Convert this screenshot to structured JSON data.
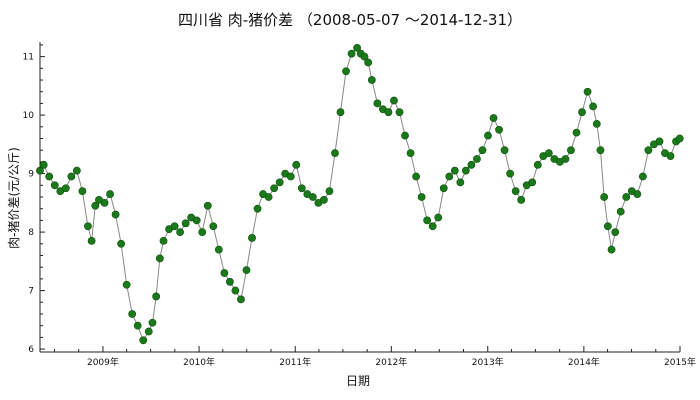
{
  "chart_data": {
    "type": "line",
    "title": "四川省 肉-猪价差 （2008-05-07 ～2014-12-31）",
    "xlabel": "日期",
    "ylabel": "肉-猪价差(元/公斤)",
    "x_tick_labels": [
      "2009年",
      "2010年",
      "2011年",
      "2012年",
      "2013年",
      "2014年",
      "2015年"
    ],
    "y_tick_labels": [
      "6",
      "7",
      "8",
      "9",
      "10",
      "11"
    ],
    "xlim": [
      "2008-05-07",
      "2015-01-01"
    ],
    "ylim": [
      5.95,
      11.25
    ],
    "grid": false,
    "series": [
      {
        "color": "#1a7a1a",
        "line_color": "#888888",
        "marker": "circle",
        "x": [
          "2008-05-07",
          "2008-05-21",
          "2008-06-11",
          "2008-07-02",
          "2008-07-23",
          "2008-08-13",
          "2008-09-03",
          "2008-09-24",
          "2008-10-15",
          "2008-11-05",
          "2008-11-19",
          "2008-12-03",
          "2008-12-17",
          "2009-01-07",
          "2009-01-28",
          "2009-02-18",
          "2009-03-11",
          "2009-04-01",
          "2009-04-22",
          "2009-05-13",
          "2009-06-03",
          "2009-06-24",
          "2009-07-08",
          "2009-07-22",
          "2009-08-05",
          "2009-08-19",
          "2009-09-09",
          "2009-09-30",
          "2009-10-21",
          "2009-11-11",
          "2009-12-02",
          "2009-12-23",
          "2010-01-13",
          "2010-02-03",
          "2010-02-24",
          "2010-03-17",
          "2010-04-07",
          "2010-04-28",
          "2010-05-19",
          "2010-06-09",
          "2010-06-30",
          "2010-07-21",
          "2010-08-11",
          "2010-09-01",
          "2010-09-22",
          "2010-10-13",
          "2010-11-03",
          "2010-11-24",
          "2010-12-15",
          "2011-01-05",
          "2011-01-26",
          "2011-02-16",
          "2011-03-09",
          "2011-03-30",
          "2011-04-20",
          "2011-05-11",
          "2011-06-01",
          "2011-06-22",
          "2011-07-13",
          "2011-08-03",
          "2011-08-24",
          "2011-09-07",
          "2011-09-21",
          "2011-10-05",
          "2011-10-19",
          "2011-11-09",
          "2011-11-30",
          "2011-12-21",
          "2012-01-11",
          "2012-02-01",
          "2012-02-22",
          "2012-03-14",
          "2012-04-04",
          "2012-04-25",
          "2012-05-16",
          "2012-06-06",
          "2012-06-27",
          "2012-07-18",
          "2012-08-08",
          "2012-08-29",
          "2012-09-19",
          "2012-10-10",
          "2012-10-31",
          "2012-11-21",
          "2012-12-12",
          "2013-01-02",
          "2013-01-23",
          "2013-02-13",
          "2013-03-06",
          "2013-03-27",
          "2013-04-17",
          "2013-05-08",
          "2013-05-29",
          "2013-06-19",
          "2013-07-10",
          "2013-07-31",
          "2013-08-21",
          "2013-09-11",
          "2013-10-02",
          "2013-10-23",
          "2013-11-13",
          "2013-12-04",
          "2013-12-25",
          "2014-01-15",
          "2014-02-05",
          "2014-02-19",
          "2014-03-05",
          "2014-03-19",
          "2014-04-02",
          "2014-04-16",
          "2014-04-30",
          "2014-05-21",
          "2014-06-11",
          "2014-07-02",
          "2014-07-23",
          "2014-08-13",
          "2014-09-03",
          "2014-09-24",
          "2014-10-15",
          "2014-11-05",
          "2014-11-26",
          "2014-12-17",
          "2014-12-31"
        ],
        "y": [
          9.05,
          9.15,
          8.95,
          8.8,
          8.7,
          8.75,
          8.95,
          9.05,
          8.7,
          8.1,
          7.85,
          8.45,
          8.55,
          8.5,
          8.65,
          8.3,
          7.8,
          7.1,
          6.6,
          6.4,
          6.15,
          6.3,
          6.45,
          6.9,
          7.55,
          7.85,
          8.05,
          8.1,
          8.0,
          8.15,
          8.25,
          8.2,
          8.0,
          8.45,
          8.1,
          7.7,
          7.3,
          7.15,
          7.0,
          6.85,
          7.35,
          7.9,
          8.4,
          8.65,
          8.6,
          8.75,
          8.85,
          9.0,
          8.95,
          9.15,
          8.75,
          8.65,
          8.6,
          8.5,
          8.55,
          8.7,
          9.35,
          10.05,
          10.75,
          11.05,
          11.15,
          11.05,
          11.0,
          10.9,
          10.6,
          10.2,
          10.1,
          10.05,
          10.25,
          10.05,
          9.65,
          9.35,
          8.95,
          8.6,
          8.2,
          8.1,
          8.25,
          8.75,
          8.95,
          9.05,
          8.85,
          9.05,
          9.15,
          9.25,
          9.4,
          9.65,
          9.95,
          9.75,
          9.4,
          9.0,
          8.7,
          8.55,
          8.8,
          8.85,
          9.15,
          9.3,
          9.35,
          9.25,
          9.2,
          9.25,
          9.4,
          9.7,
          10.05,
          10.4,
          10.15,
          9.85,
          9.4,
          8.6,
          8.1,
          7.7,
          8.0,
          8.35,
          8.6,
          8.7,
          8.65,
          8.95,
          9.4,
          9.5,
          9.55,
          9.35,
          9.3,
          9.55,
          9.6
        ]
      }
    ]
  }
}
